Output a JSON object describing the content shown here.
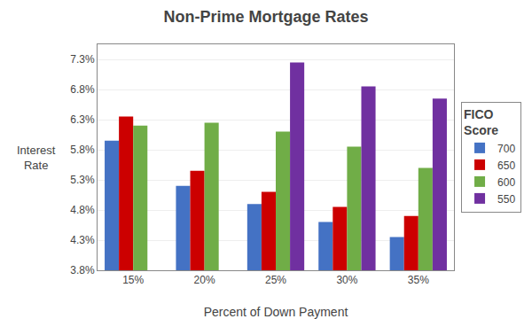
{
  "chart_data": {
    "type": "bar",
    "title": "Non-Prime Mortgage Rates",
    "xlabel": "Percent of Down Payment",
    "ylabel": "Interest\nRate",
    "legend_title": "FICO\nScore",
    "categories": [
      "15%",
      "20%",
      "25%",
      "30%",
      "35%"
    ],
    "series": [
      {
        "name": "700",
        "color": "#4472C4",
        "values": [
          5.95,
          5.2,
          4.9,
          4.6,
          4.35
        ]
      },
      {
        "name": "650",
        "color": "#CC0000",
        "values": [
          6.35,
          5.45,
          5.1,
          4.85,
          4.7
        ]
      },
      {
        "name": "600",
        "color": "#70AD47",
        "values": [
          6.2,
          6.25,
          6.1,
          5.85,
          5.5
        ]
      },
      {
        "name": "550",
        "color": "#7030A0",
        "values": [
          null,
          null,
          7.25,
          6.85,
          6.65
        ]
      }
    ],
    "ylim": [
      3.8,
      7.55
    ],
    "yticks": [
      {
        "value": 3.8,
        "label": "3.8%"
      },
      {
        "value": 4.3,
        "label": "4.3%"
      },
      {
        "value": 4.8,
        "label": "4.8%"
      },
      {
        "value": 5.3,
        "label": "5.3%"
      },
      {
        "value": 5.8,
        "label": "5.8%"
      },
      {
        "value": 6.3,
        "label": "6.3%"
      },
      {
        "value": 6.8,
        "label": "6.8%"
      },
      {
        "value": 7.3,
        "label": "7.3%"
      }
    ],
    "grid": true,
    "legend": "right"
  }
}
